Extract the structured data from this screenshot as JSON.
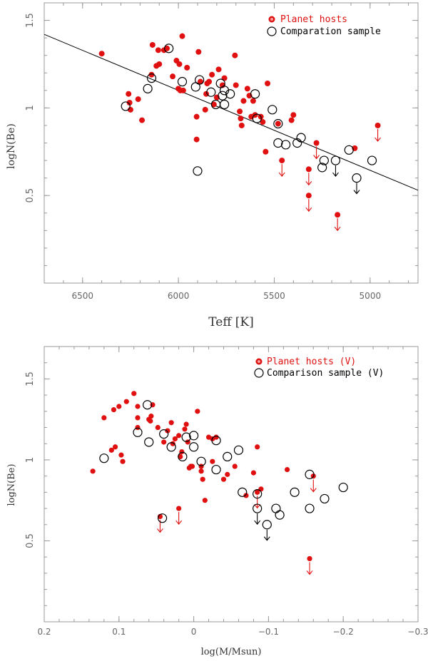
{
  "chart_data": [
    {
      "id": "teff",
      "type": "scatter",
      "xlabel": "Teff [K]",
      "ylabel": "logN(Be)",
      "xlim": [
        6700,
        4750
      ],
      "ylim": [
        0.0,
        1.6
      ],
      "x_ticks": [
        6500,
        6000,
        5500,
        5000
      ],
      "y_ticks": [
        0.5,
        1.0,
        1.5
      ],
      "y_tick_labels": [
        "0.5",
        "1",
        "1.5"
      ],
      "legend_position": "top-right",
      "legend": [
        {
          "label": "Planet hosts",
          "marker": "filled-circle",
          "color": "#e01010"
        },
        {
          "label": "Comparation sample",
          "marker": "open-circle",
          "color": "#000000"
        }
      ],
      "fit_line": {
        "x": [
          6700,
          4750
        ],
        "y": [
          1.42,
          0.53
        ],
        "color": "#000000"
      },
      "series": [
        {
          "name": "Planet hosts",
          "color": "#e01010",
          "marker": "filled-circle",
          "points": [
            [
              6400,
              1.31
            ],
            [
              6260,
              1.08
            ],
            [
              6255,
              1.03
            ],
            [
              6250,
              0.99
            ],
            [
              6210,
              1.05
            ],
            [
              6190,
              0.93
            ],
            [
              6140,
              1.19
            ],
            [
              6135,
              1.36
            ],
            [
              6115,
              1.24
            ],
            [
              6105,
              1.33
            ],
            [
              6100,
              1.25
            ],
            [
              6075,
              1.33
            ],
            [
              6060,
              1.34
            ],
            [
              6030,
              1.18
            ],
            [
              6010,
              1.27
            ],
            [
              6000,
              1.11
            ],
            [
              5995,
              1.25
            ],
            [
              5990,
              1.1
            ],
            [
              5980,
              1.41
            ],
            [
              5975,
              1.1
            ],
            [
              5955,
              1.23
            ],
            [
              5905,
              0.95
            ],
            [
              5895,
              1.32
            ],
            [
              5885,
              1.15
            ],
            [
              5860,
              0.99
            ],
            [
              5855,
              1.08
            ],
            [
              5850,
              1.14
            ],
            [
              5840,
              1.15
            ],
            [
              5825,
              1.19
            ],
            [
              5815,
              1.02
            ],
            [
              5800,
              1.06
            ],
            [
              5790,
              1.22
            ],
            [
              5770,
              1.13
            ],
            [
              5760,
              1.17
            ],
            [
              5705,
              1.3
            ],
            [
              5700,
              1.13
            ],
            [
              5680,
              0.98
            ],
            [
              5675,
              0.94
            ],
            [
              5670,
              0.9
            ],
            [
              5660,
              1.04
            ],
            [
              5640,
              1.11
            ],
            [
              5630,
              1.07
            ],
            [
              5620,
              0.95
            ],
            [
              5610,
              1.04
            ],
            [
              5600,
              0.96
            ],
            [
              5570,
              0.95
            ],
            [
              5560,
              0.92
            ],
            [
              5545,
              0.75
            ],
            [
              5535,
              1.14
            ],
            [
              5480,
              0.91
            ],
            [
              5410,
              0.93
            ],
            [
              5400,
              0.96
            ],
            [
              5080,
              0.77
            ],
            [
              5905,
              0.82
            ]
          ]
        },
        {
          "name": "Planet hosts (upper limits)",
          "color": "#e01010",
          "marker": "filled-circle-arrow-down",
          "points": [
            [
              5460,
              0.7
            ],
            [
              5320,
              0.65
            ],
            [
              5320,
              0.5
            ],
            [
              5280,
              0.8
            ],
            [
              5170,
              0.39
            ],
            [
              4960,
              0.9
            ]
          ]
        },
        {
          "name": "Comparation sample",
          "color": "#000000",
          "marker": "open-circle",
          "points": [
            [
              6275,
              1.01
            ],
            [
              6160,
              1.11
            ],
            [
              6140,
              1.17
            ],
            [
              6050,
              1.34
            ],
            [
              5980,
              1.15
            ],
            [
              5910,
              1.12
            ],
            [
              5890,
              1.16
            ],
            [
              5830,
              1.09
            ],
            [
              5805,
              1.02
            ],
            [
              5780,
              1.14
            ],
            [
              5770,
              1.07
            ],
            [
              5760,
              1.1
            ],
            [
              5760,
              1.02
            ],
            [
              5730,
              1.08
            ],
            [
              5600,
              1.08
            ],
            [
              5590,
              0.94
            ],
            [
              5510,
              0.99
            ],
            [
              5480,
              0.8
            ],
            [
              5480,
              0.91
            ],
            [
              5440,
              0.79
            ],
            [
              5380,
              0.8
            ],
            [
              5360,
              0.83
            ],
            [
              5250,
              0.66
            ],
            [
              5240,
              0.7
            ],
            [
              5110,
              0.76
            ],
            [
              4990,
              0.7
            ],
            [
              5900,
              0.64
            ]
          ]
        },
        {
          "name": "Comparation sample (upper limits)",
          "color": "#000000",
          "marker": "open-circle-arrow-down",
          "points": [
            [
              5180,
              0.7
            ],
            [
              5070,
              0.6
            ]
          ]
        }
      ]
    },
    {
      "id": "mass",
      "type": "scatter",
      "xlabel": "log(M/Msun)",
      "ylabel": "logN(Be)",
      "xlim": [
        0.2,
        -0.3
      ],
      "ylim": [
        0.0,
        1.7
      ],
      "x_ticks": [
        0.2,
        0.1,
        0.0,
        -0.1,
        -0.2,
        -0.3
      ],
      "x_tick_labels": [
        "0.2",
        "0.1",
        "0",
        "−0.1",
        "−0.2",
        "−0.3"
      ],
      "y_ticks": [
        0.5,
        1.0,
        1.5
      ],
      "y_tick_labels": [
        "0.5",
        "1",
        "1.5"
      ],
      "legend_position": "top-right",
      "legend": [
        {
          "label": "Planet hosts (V)",
          "marker": "filled-circle",
          "color": "#e01010"
        },
        {
          "label": "Comparison sample (V)",
          "marker": "open-circle",
          "color": "#000000"
        }
      ],
      "series": [
        {
          "name": "Planet hosts (V)",
          "color": "#e01010",
          "marker": "filled-circle",
          "points": [
            [
              0.135,
              0.93
            ],
            [
              0.12,
              1.26
            ],
            [
              0.11,
              1.06
            ],
            [
              0.107,
              1.31
            ],
            [
              0.105,
              1.08
            ],
            [
              0.1,
              1.33
            ],
            [
              0.097,
              1.03
            ],
            [
              0.095,
              0.99
            ],
            [
              0.09,
              1.36
            ],
            [
              0.08,
              1.41
            ],
            [
              0.075,
              1.33
            ],
            [
              0.075,
              1.26
            ],
            [
              0.075,
              1.2
            ],
            [
              0.06,
              1.25
            ],
            [
              0.058,
              1.24
            ],
            [
              0.057,
              1.27
            ],
            [
              0.055,
              1.34
            ],
            [
              0.048,
              1.2
            ],
            [
              0.04,
              1.11
            ],
            [
              0.035,
              1.18
            ],
            [
              0.03,
              1.23
            ],
            [
              0.028,
              1.1
            ],
            [
              0.025,
              1.13
            ],
            [
              0.02,
              1.15
            ],
            [
              0.018,
              1.02
            ],
            [
              0.016,
              1.05
            ],
            [
              0.012,
              1.19
            ],
            [
              0.01,
              1.22
            ],
            [
              0.008,
              1.11
            ],
            [
              0.006,
              0.95
            ],
            [
              0.004,
              0.96
            ],
            [
              0.002,
              0.96
            ],
            [
              -0.005,
              1.3
            ],
            [
              -0.01,
              0.96
            ],
            [
              -0.01,
              0.93
            ],
            [
              -0.012,
              0.88
            ],
            [
              -0.015,
              0.75
            ],
            [
              -0.02,
              1.14
            ],
            [
              -0.025,
              1.13
            ],
            [
              -0.03,
              1.14
            ],
            [
              -0.025,
              0.99
            ],
            [
              -0.045,
              0.91
            ],
            [
              -0.055,
              0.96
            ],
            [
              -0.07,
              0.78
            ],
            [
              -0.08,
              0.92
            ],
            [
              -0.085,
              1.08
            ],
            [
              -0.09,
              0.82
            ],
            [
              -0.125,
              0.94
            ],
            [
              -0.04,
              0.88
            ]
          ]
        },
        {
          "name": "Planet hosts (V) upper limits",
          "color": "#e01010",
          "marker": "filled-circle-arrow-down",
          "points": [
            [
              0.02,
              0.7
            ],
            [
              0.045,
              0.65
            ],
            [
              -0.085,
              0.8
            ],
            [
              -0.155,
              0.39
            ],
            [
              -0.16,
              0.9
            ]
          ]
        },
        {
          "name": "Comparison sample (V)",
          "color": "#000000",
          "marker": "open-circle",
          "points": [
            [
              0.12,
              1.01
            ],
            [
              0.075,
              1.17
            ],
            [
              0.06,
              1.11
            ],
            [
              0.062,
              1.34
            ],
            [
              0.04,
              1.16
            ],
            [
              0.03,
              1.08
            ],
            [
              0.015,
              1.02
            ],
            [
              0.01,
              1.14
            ],
            [
              0.0,
              1.15
            ],
            [
              0.0,
              1.08
            ],
            [
              -0.01,
              0.99
            ],
            [
              -0.03,
              1.12
            ],
            [
              -0.03,
              0.94
            ],
            [
              -0.045,
              1.02
            ],
            [
              -0.06,
              1.06
            ],
            [
              -0.065,
              0.8
            ],
            [
              -0.085,
              0.79
            ],
            [
              -0.11,
              0.7
            ],
            [
              -0.115,
              0.66
            ],
            [
              -0.135,
              0.8
            ],
            [
              -0.155,
              0.91
            ],
            [
              -0.155,
              0.7
            ],
            [
              -0.175,
              0.76
            ],
            [
              -0.2,
              0.83
            ],
            [
              0.042,
              0.64
            ]
          ]
        },
        {
          "name": "Comparison sample (V) upper limits",
          "color": "#000000",
          "marker": "open-circle-arrow-down",
          "points": [
            [
              -0.085,
              0.7
            ],
            [
              -0.098,
              0.6
            ]
          ]
        }
      ]
    }
  ]
}
